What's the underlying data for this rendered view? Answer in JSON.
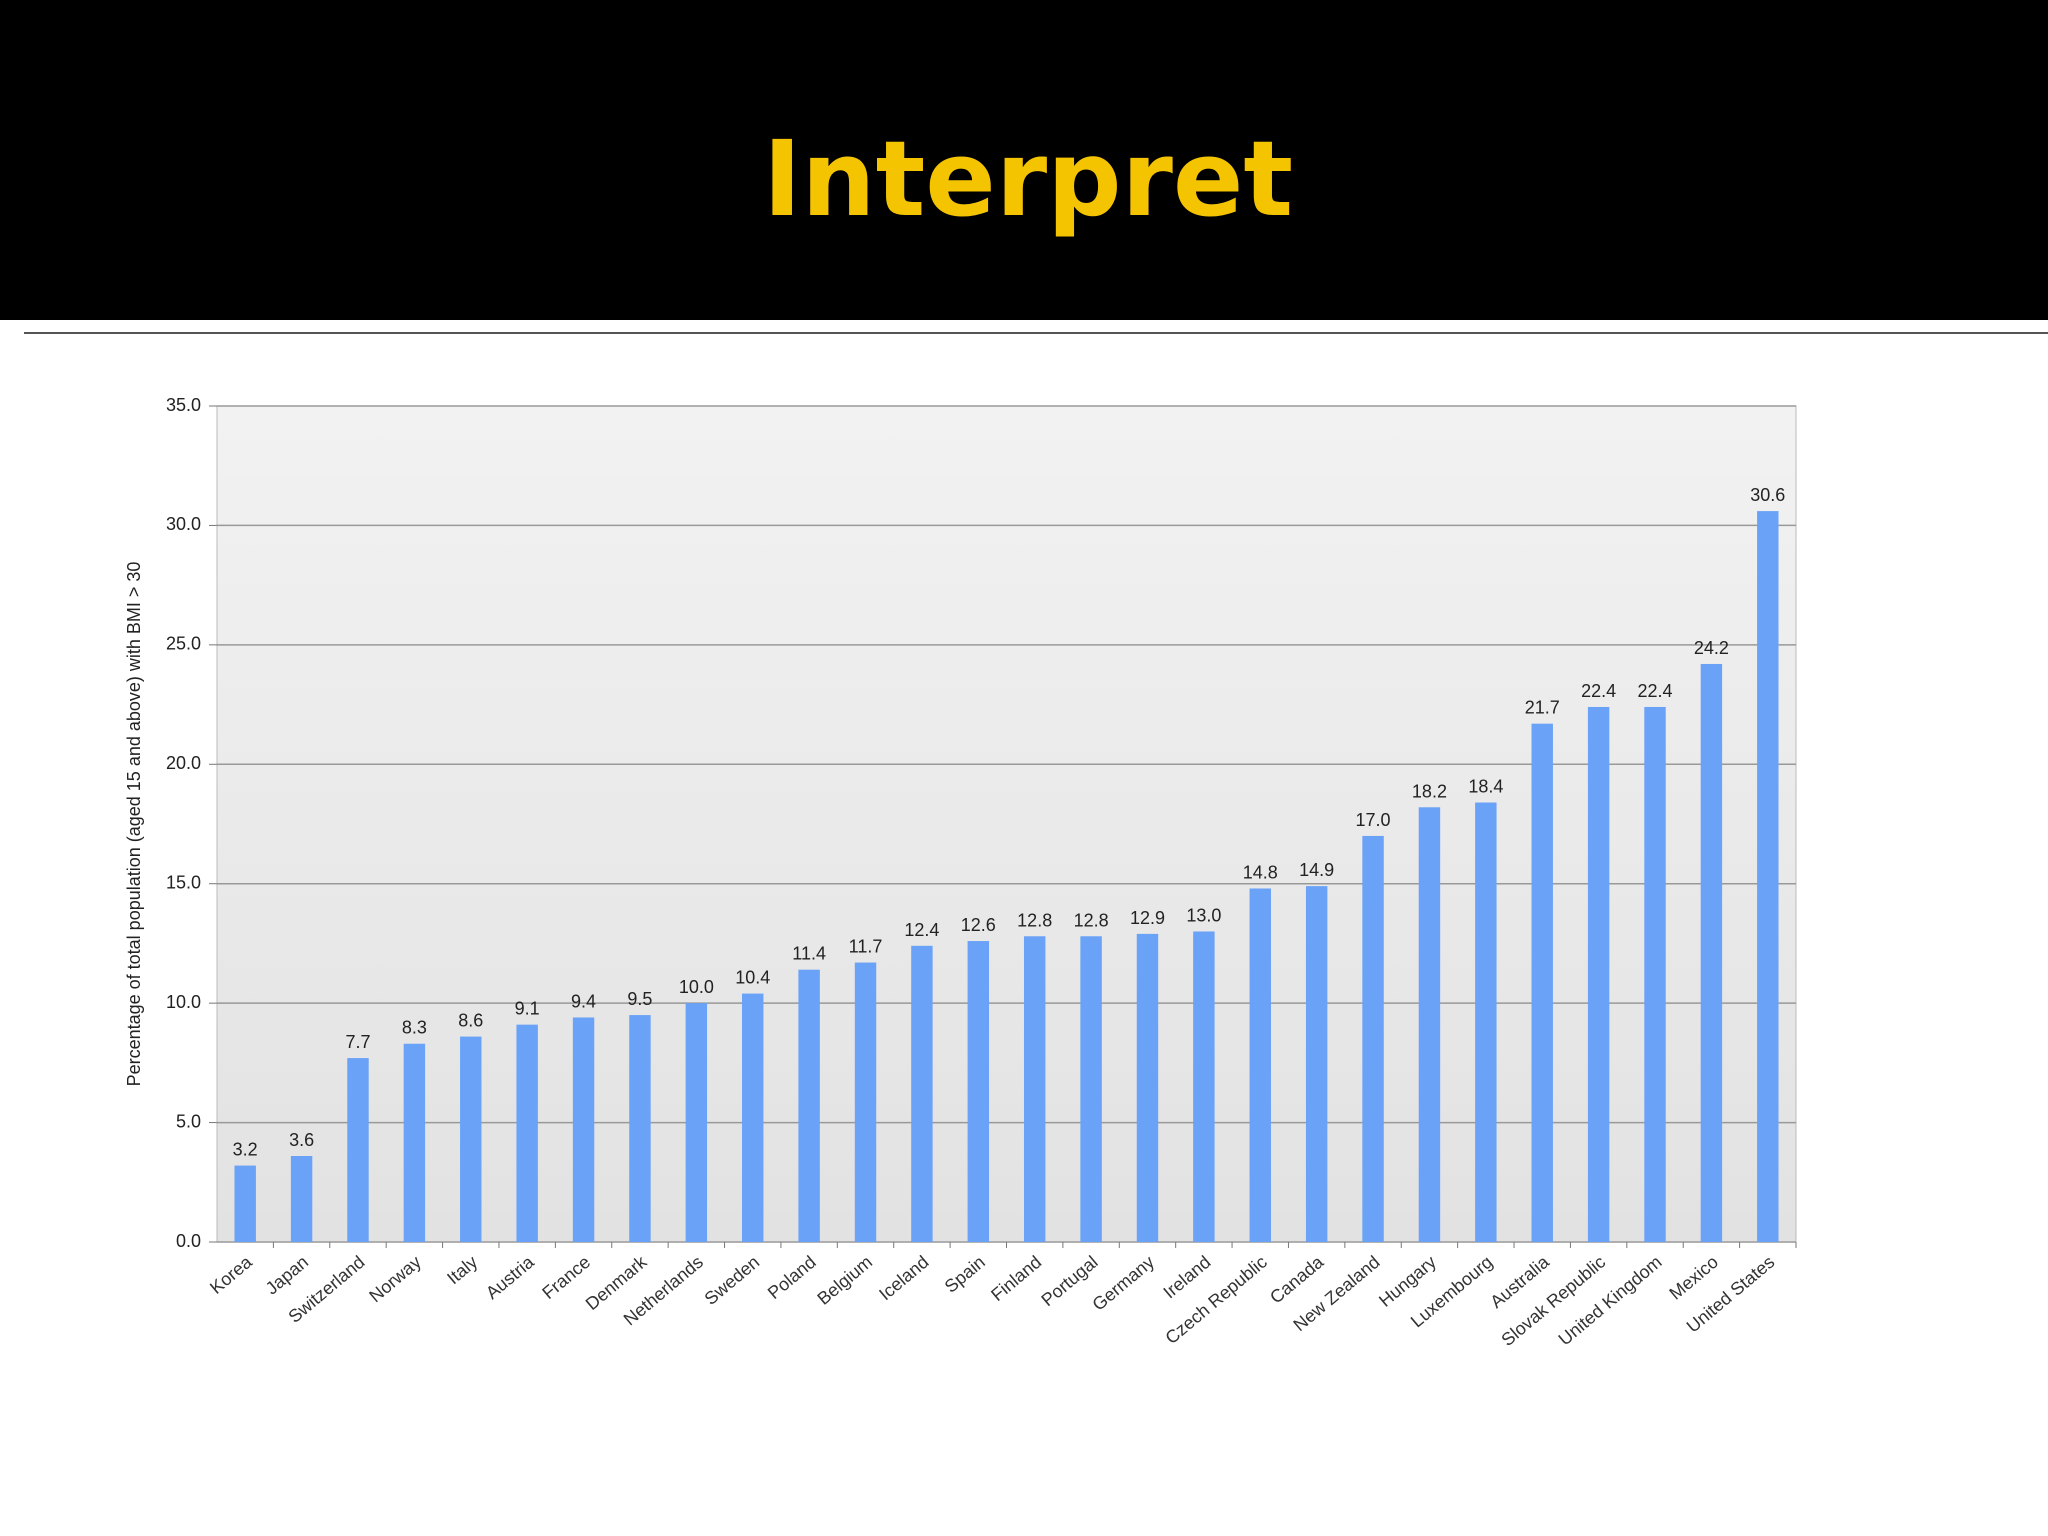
{
  "chart_data": {
    "type": "bar",
    "title": "Interpret",
    "y_label": "Percentage of total population (aged 15 and above) with BMI > 30",
    "categories": [
      "Korea",
      "Japan",
      "Switzerland",
      "Norway",
      "Italy",
      "Austria",
      "France",
      "Denmark",
      "Netherlands",
      "Sweden",
      "Poland",
      "Belgium",
      "Iceland",
      "Spain",
      "Finland",
      "Portugal",
      "Germany",
      "Ireland",
      "Czech Republic",
      "Canada",
      "New Zealand",
      "Hungary",
      "Luxembourg",
      "Australia",
      "Slovak Republic",
      "United Kingdom",
      "Mexico",
      "United States"
    ],
    "values": [
      3.2,
      3.6,
      7.7,
      8.3,
      8.6,
      9.1,
      9.4,
      9.5,
      10,
      10.4,
      11.4,
      11.7,
      12.4,
      12.6,
      12.8,
      12.8,
      12.9,
      13,
      14.8,
      14.9,
      17,
      18.2,
      18.4,
      21.7,
      22.4,
      22.4,
      24.2,
      30.6
    ],
    "value_labels": [
      "3.2",
      "3.6",
      "7.7",
      "8.3",
      "8.6",
      "9.1",
      "9.4",
      "9.5",
      "10.0",
      "10.4",
      "11.4",
      "11.7",
      "12.4",
      "12.6",
      "12.8",
      "12.8",
      "12.9",
      "13.0",
      "14.8",
      "14.9",
      "17.0",
      "18.2",
      "18.4",
      "21.7",
      "22.4",
      "22.4",
      "24.2",
      "30.6"
    ],
    "color": "#6aa2f7",
    "ylim": [
      0,
      35
    ],
    "yticks": [
      {
        "value": 0,
        "label": "0.0"
      },
      {
        "value": 5,
        "label": "5.0"
      },
      {
        "value": 10,
        "label": "10.0"
      },
      {
        "value": 15,
        "label": "15.0"
      },
      {
        "value": 20,
        "label": "20.0"
      },
      {
        "value": 25,
        "label": "25.0"
      },
      {
        "value": 30,
        "label": "30.0"
      },
      {
        "value": 35,
        "label": "35.0"
      }
    ],
    "grid": true
  }
}
